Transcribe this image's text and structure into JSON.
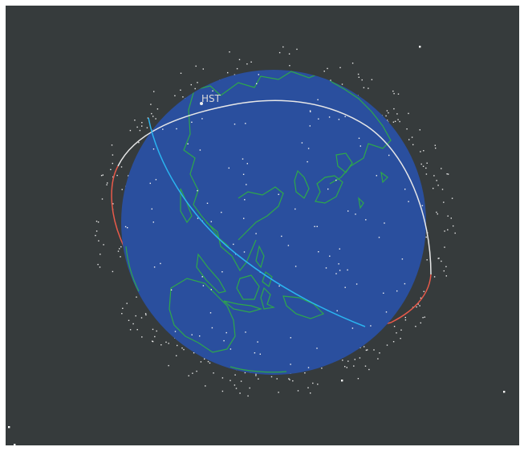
{
  "view": {
    "title": "",
    "background_color": "#363b3c",
    "earth_color": "#2a4f9e",
    "coastline_color": "#2ea84a"
  },
  "satellite": {
    "label": "HST",
    "orbit_front_color": "#e8e8e8",
    "orbit_back_color": "#e85a4a",
    "ground_track_color": "#2ab4f0"
  }
}
